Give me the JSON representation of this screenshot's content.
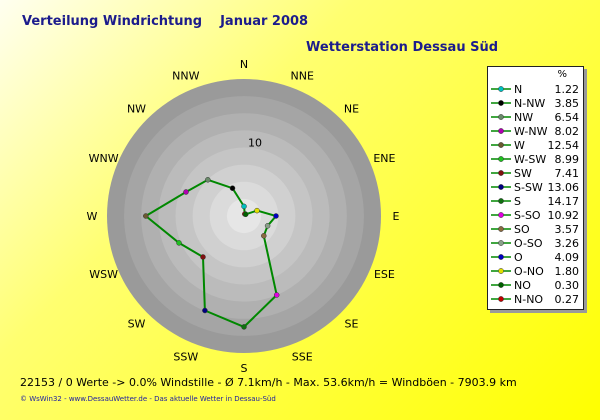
{
  "title": "Verteilung Windrichtung",
  "month": "Januar 2008",
  "station": "Wetterstation Dessau Süd",
  "footer": "22153 / 0 Werte  -> 0.0% Windstille   -   Ø 7.1km/h  -  Max. 53.6km/h = Windböen   -   7903.9 km",
  "credit": "© WsWin32  -  www.DessauWetter.de  -  Das aktuelle Wetter in Dessau-Süd",
  "colors": {
    "line": "#008800",
    "ring_outer": "#999999",
    "ring_inner": "#e6e6e6",
    "label": "#1c1c8c",
    "text": "#000000"
  },
  "chart_data": {
    "type": "radar",
    "rmax": 17.5,
    "ring_label": "10",
    "compass": [
      "N",
      "NNE",
      "NE",
      "ENE",
      "E",
      "ESE",
      "SE",
      "SSE",
      "S",
      "SSW",
      "SW",
      "WSW",
      "W",
      "WNW",
      "NW",
      "NNW"
    ],
    "legend_header": "%",
    "series": [
      {
        "label": "N",
        "dir": "N",
        "value": 1.22,
        "color": "#00c0c0"
      },
      {
        "label": "N-NW",
        "dir": "NNW",
        "value": 3.85,
        "color": "#000000"
      },
      {
        "label": "NW",
        "dir": "NW",
        "value": 6.54,
        "color": "#6a8a6a"
      },
      {
        "label": "W-NW",
        "dir": "WNW",
        "value": 8.02,
        "color": "#b000b0"
      },
      {
        "label": "W",
        "dir": "W",
        "value": 12.54,
        "color": "#6a5a30"
      },
      {
        "label": "W-SW",
        "dir": "WSW",
        "value": 8.99,
        "color": "#20c020"
      },
      {
        "label": "SW",
        "dir": "SW",
        "value": 7.41,
        "color": "#801010"
      },
      {
        "label": "S-SW",
        "dir": "SSW",
        "value": 13.06,
        "color": "#000080"
      },
      {
        "label": "S",
        "dir": "S",
        "value": 14.17,
        "color": "#107010"
      },
      {
        "label": "S-SO",
        "dir": "SSE",
        "value": 10.92,
        "color": "#e000e0"
      },
      {
        "label": "SO",
        "dir": "SE",
        "value": 3.57,
        "color": "#8a6a40"
      },
      {
        "label": "O-SO",
        "dir": "ESE",
        "value": 3.26,
        "color": "#8aa08a"
      },
      {
        "label": "O",
        "dir": "E",
        "value": 4.09,
        "color": "#0000c0"
      },
      {
        "label": "O-NO",
        "dir": "ENE",
        "value": 1.8,
        "color": "#e0e000"
      },
      {
        "label": "NO",
        "dir": "NE",
        "value": 0.3,
        "color": "#006000"
      },
      {
        "label": "N-NO",
        "dir": "NNE",
        "value": 0.27,
        "color": "#c00000"
      }
    ]
  }
}
